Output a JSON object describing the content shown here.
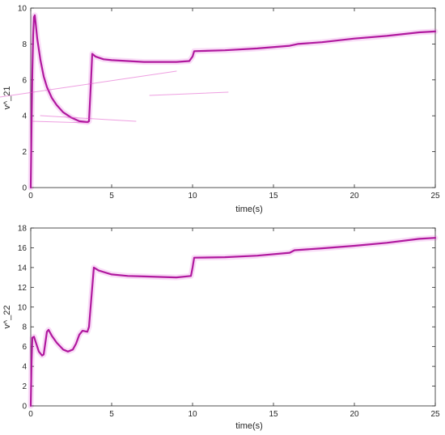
{
  "colors": {
    "series": "#b0189e",
    "halo": "#e040d0",
    "artifact": "#e050c8",
    "axis": "#262626",
    "background": "#ffffff"
  },
  "chart_data": [
    {
      "type": "line",
      "xlabel": "time(s)",
      "ylabel": "v^_21",
      "xlim": [
        0,
        25
      ],
      "ylim": [
        0,
        10
      ],
      "xticks": [
        0,
        5,
        10,
        15,
        20,
        25
      ],
      "yticks": [
        0,
        2,
        4,
        6,
        8,
        10
      ],
      "grid": false,
      "series": [
        {
          "x": [
            0,
            0.05,
            0.1,
            0.15,
            0.2,
            0.25,
            0.3,
            0.4,
            0.6,
            0.8,
            1.0,
            1.3,
            1.6,
            2.0,
            2.5,
            3.0,
            3.5,
            3.6,
            3.7,
            3.8,
            4.0,
            4.5,
            5.0,
            6.0,
            7.0,
            8.0,
            9.0,
            9.8,
            10.0,
            10.1,
            12.0,
            14.0,
            16.0,
            16.5,
            18.0,
            20.0,
            22.0,
            24.0,
            25.0
          ],
          "values": [
            0,
            3.5,
            6.5,
            8.5,
            9.5,
            9.6,
            9.2,
            8.3,
            7.1,
            6.2,
            5.6,
            5.0,
            4.6,
            4.2,
            3.9,
            3.7,
            3.65,
            3.7,
            5.5,
            7.45,
            7.3,
            7.15,
            7.1,
            7.05,
            7.0,
            7.0,
            7.0,
            7.05,
            7.3,
            7.6,
            7.65,
            7.75,
            7.9,
            8.0,
            8.1,
            8.3,
            8.45,
            8.65,
            8.7
          ]
        }
      ]
    },
    {
      "type": "line",
      "xlabel": "time(s)",
      "ylabel": "v^_22",
      "xlim": [
        0,
        25
      ],
      "ylim": [
        0,
        18
      ],
      "xticks": [
        0,
        5,
        10,
        15,
        20,
        25
      ],
      "yticks": [
        0,
        2,
        4,
        6,
        8,
        10,
        12,
        14,
        16,
        18
      ],
      "grid": false,
      "series": [
        {
          "x": [
            0,
            0.05,
            0.1,
            0.2,
            0.3,
            0.5,
            0.7,
            0.8,
            1.0,
            1.1,
            1.3,
            1.6,
            2.0,
            2.3,
            2.6,
            2.8,
            3.0,
            3.2,
            3.5,
            3.6,
            3.8,
            3.9,
            4.2,
            5.0,
            6.0,
            7.0,
            8.0,
            9.0,
            9.9,
            10.0,
            10.1,
            12.0,
            14.0,
            16.0,
            16.3,
            18.0,
            20.0,
            22.0,
            24.0,
            25.0
          ],
          "values": [
            0,
            4.5,
            6.9,
            7.0,
            6.5,
            5.5,
            5.1,
            5.2,
            7.5,
            7.7,
            7.1,
            6.4,
            5.7,
            5.5,
            5.7,
            6.3,
            7.2,
            7.6,
            7.5,
            8.0,
            12.0,
            14.0,
            13.7,
            13.3,
            13.15,
            13.1,
            13.05,
            13.0,
            13.15,
            14.0,
            15.0,
            15.05,
            15.2,
            15.5,
            15.75,
            15.95,
            16.2,
            16.5,
            16.9,
            17.0
          ]
        }
      ]
    }
  ]
}
